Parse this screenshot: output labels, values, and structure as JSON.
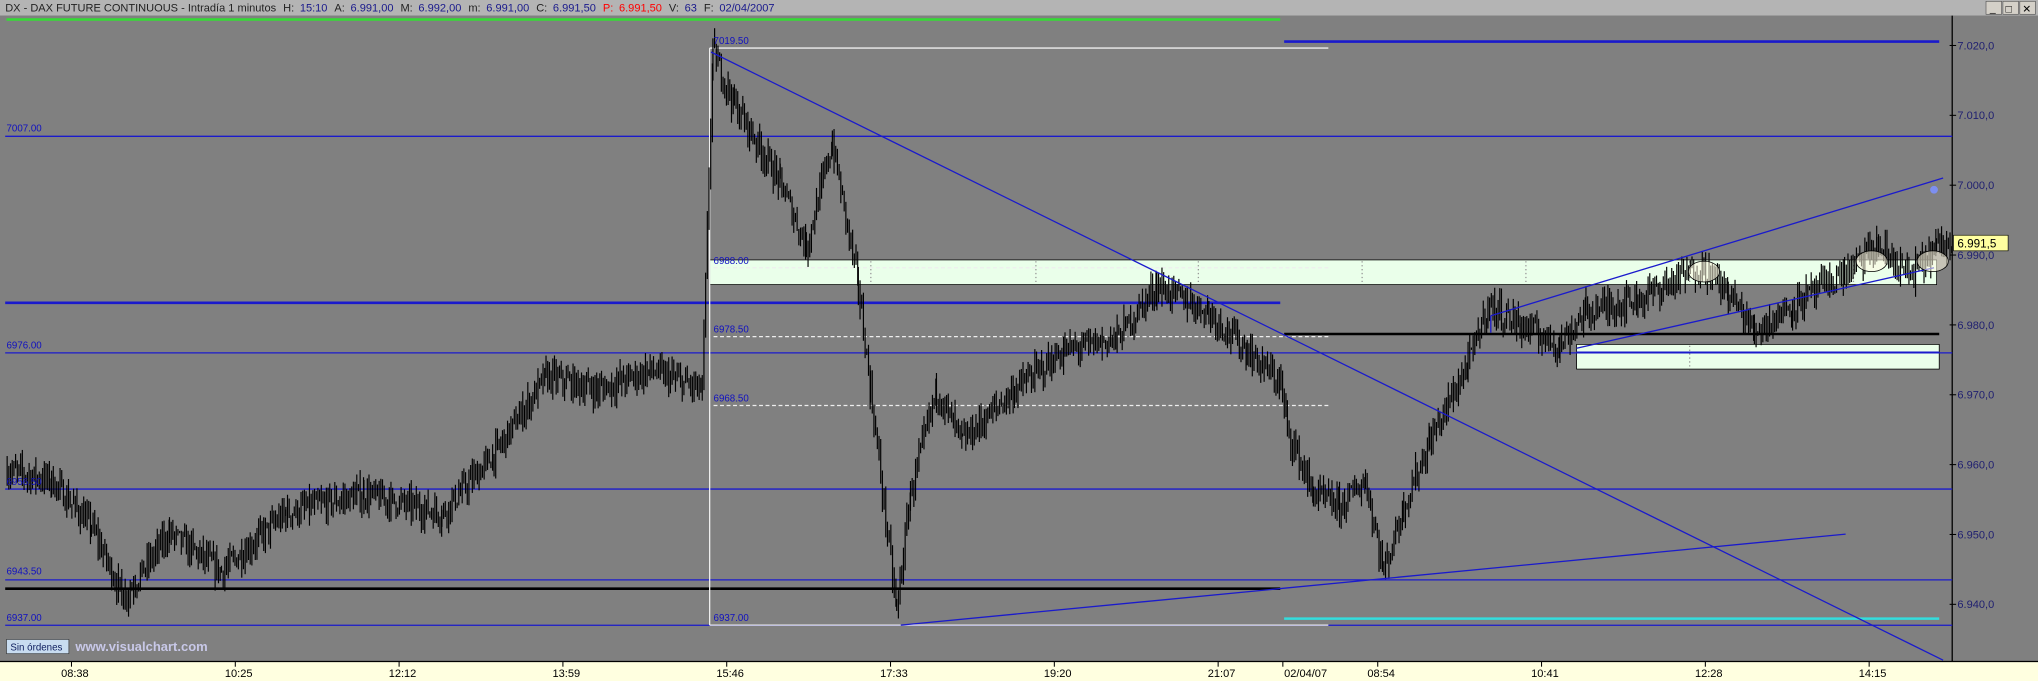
{
  "header": {
    "symbol": "DX - DAX FUTURE CONTINUOUS - Intradía 1 minutos",
    "h_label": "H:",
    "h_value": "15:10",
    "a_label": "A:",
    "a_value": "6.991,00",
    "m_label": "M:",
    "m_value": "6.992,00",
    "min_label": "m:",
    "min_value": "6.991,00",
    "c_label": "C:",
    "c_value": "6.991,50",
    "p_label": "P:",
    "p_value": "6.991,50",
    "v_label": "V:",
    "v_value": "63",
    "f_label": "F:",
    "f_value": "02/04/2007"
  },
  "window_buttons": {
    "minimize": "_",
    "maximize": "□",
    "close": "✕"
  },
  "footer": {
    "orders_button": "Sin órdenes",
    "watermark": "www.visualchart.com"
  },
  "colors": {
    "background": "#808080",
    "bars": "#000000",
    "levels": "#1a1acc",
    "zones": "#eaffea",
    "axis_bg": "#ffffe0",
    "last_price_tag": "#ffffa0",
    "header_up": "#1a1a8c",
    "header_p": "#ff0000"
  },
  "annotations": {
    "levels_left": [
      "7007.00",
      "6976.00",
      "6956.50",
      "6943.50",
      "6937.00"
    ],
    "range_high": "7019.50",
    "retracements": [
      "6988.00",
      "6978.50",
      "6968.50"
    ],
    "range_low": "6937.00",
    "last_price_tag": "6.991,5"
  },
  "chart_data": {
    "type": "ohlc",
    "interval": "1 minute",
    "ylim": [
      6935,
      7025
    ],
    "y_ticks": [
      "7.020,0",
      "7.010,0",
      "7.000,0",
      "6.990,0",
      "6.980,0",
      "6.970,0",
      "6.960,0",
      "6.950,0",
      "6.940,0"
    ],
    "y_tick_values": [
      7020,
      7010,
      7000,
      6990,
      6980,
      6970,
      6960,
      6950,
      6940
    ],
    "x_ticks": [
      {
        "label": "08:38",
        "day": 1,
        "t": "08:38"
      },
      {
        "label": "10:25",
        "day": 1,
        "t": "10:25"
      },
      {
        "label": "12:12",
        "day": 1,
        "t": "12:12"
      },
      {
        "label": "13:59",
        "day": 1,
        "t": "13:59"
      },
      {
        "label": "15:46",
        "day": 1,
        "t": "15:46"
      },
      {
        "label": "17:33",
        "day": 1,
        "t": "17:33"
      },
      {
        "label": "19:20",
        "day": 1,
        "t": "19:20"
      },
      {
        "label": "21:07",
        "day": 1,
        "t": "21:07"
      },
      {
        "label": "02/04/07",
        "day": 2,
        "t": "07:54"
      },
      {
        "label": "08:54",
        "day": 2,
        "t": "08:54"
      },
      {
        "label": "10:41",
        "day": 2,
        "t": "10:41"
      },
      {
        "label": "12:28",
        "day": 2,
        "t": "12:28"
      },
      {
        "label": "14:15",
        "day": 2,
        "t": "14:15"
      }
    ],
    "approx_path": [
      {
        "day": 1,
        "t": "07:56",
        "p": 6959.2
      },
      {
        "day": 1,
        "t": "08:25",
        "p": 6957.7
      },
      {
        "day": 1,
        "t": "08:51",
        "p": 6951.2
      },
      {
        "day": 1,
        "t": "09:12",
        "p": 6940.9
      },
      {
        "day": 1,
        "t": "09:42",
        "p": 6950.2
      },
      {
        "day": 1,
        "t": "10:16",
        "p": 6944.7
      },
      {
        "day": 1,
        "t": "10:58",
        "p": 6953.0
      },
      {
        "day": 1,
        "t": "11:49",
        "p": 6955.8
      },
      {
        "day": 1,
        "t": "12:40",
        "p": 6953.0
      },
      {
        "day": 1,
        "t": "13:14",
        "p": 6961.4
      },
      {
        "day": 1,
        "t": "13:48",
        "p": 6972.6
      },
      {
        "day": 1,
        "t": "14:22",
        "p": 6970.7
      },
      {
        "day": 1,
        "t": "14:56",
        "p": 6973.5
      },
      {
        "day": 1,
        "t": "15:30",
        "p": 6970.7
      },
      {
        "day": 1,
        "t": "15:37",
        "p": 7019.1
      },
      {
        "day": 1,
        "t": "15:51",
        "p": 7011.6
      },
      {
        "day": 1,
        "t": "16:21",
        "p": 7000.5
      },
      {
        "day": 1,
        "t": "16:38",
        "p": 6991.2
      },
      {
        "day": 1,
        "t": "16:55",
        "p": 7006.0
      },
      {
        "day": 1,
        "t": "17:12",
        "p": 6985.6
      },
      {
        "day": 1,
        "t": "17:20",
        "p": 6970.7
      },
      {
        "day": 1,
        "t": "17:37",
        "p": 6939.1
      },
      {
        "day": 1,
        "t": "17:46",
        "p": 6955.8
      },
      {
        "day": 1,
        "t": "18:03",
        "p": 6970.7
      },
      {
        "day": 1,
        "t": "18:20",
        "p": 6963.3
      },
      {
        "day": 1,
        "t": "18:54",
        "p": 6970.7
      },
      {
        "day": 1,
        "t": "19:27",
        "p": 6976.3
      },
      {
        "day": 1,
        "t": "20:01",
        "p": 6978.1
      },
      {
        "day": 1,
        "t": "20:27",
        "p": 6985.6
      },
      {
        "day": 1,
        "t": "21:01",
        "p": 6981.9
      },
      {
        "day": 1,
        "t": "21:26",
        "p": 6976.3
      },
      {
        "day": 1,
        "t": "21:48",
        "p": 6971.6
      },
      {
        "day": 2,
        "t": "07:55",
        "p": 6965.1
      },
      {
        "day": 2,
        "t": "08:12",
        "p": 6955.8
      },
      {
        "day": 2,
        "t": "08:29",
        "p": 6954.0
      },
      {
        "day": 2,
        "t": "08:46",
        "p": 6957.7
      },
      {
        "day": 2,
        "t": "08:58",
        "p": 6944.7
      },
      {
        "day": 2,
        "t": "09:11",
        "p": 6954.0
      },
      {
        "day": 2,
        "t": "09:28",
        "p": 6963.3
      },
      {
        "day": 2,
        "t": "09:53",
        "p": 6974.4
      },
      {
        "day": 2,
        "t": "10:06",
        "p": 6982.8
      },
      {
        "day": 2,
        "t": "10:27",
        "p": 6980.0
      },
      {
        "day": 2,
        "t": "10:53",
        "p": 6977.2
      },
      {
        "day": 2,
        "t": "11:10",
        "p": 6981.9
      },
      {
        "day": 2,
        "t": "11:44",
        "p": 6983.7
      },
      {
        "day": 2,
        "t": "12:26",
        "p": 6988.4
      },
      {
        "day": 2,
        "t": "12:43",
        "p": 6984.7
      },
      {
        "day": 2,
        "t": "13:00",
        "p": 6979.1
      },
      {
        "day": 2,
        "t": "13:25",
        "p": 6982.8
      },
      {
        "day": 2,
        "t": "13:59",
        "p": 6987.4
      },
      {
        "day": 2,
        "t": "14:20",
        "p": 6991.2
      },
      {
        "day": 2,
        "t": "14:42",
        "p": 6987.0
      },
      {
        "day": 2,
        "t": "14:59",
        "p": 6991.2
      },
      {
        "day": 2,
        "t": "15:10",
        "p": 6991.5
      }
    ],
    "grid": false
  }
}
